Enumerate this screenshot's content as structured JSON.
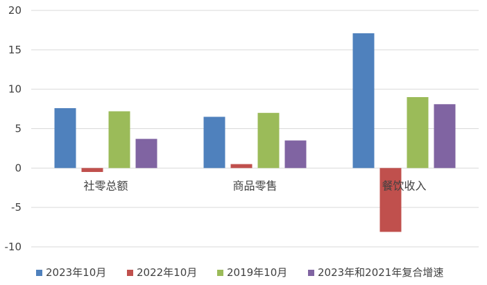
{
  "chart_data": {
    "type": "bar",
    "title": "",
    "xlabel": "",
    "ylabel": "",
    "categories": [
      "社零总额",
      "商品零售",
      "餐饮收入"
    ],
    "ylim": [
      -10,
      20
    ],
    "yticks": [
      -10,
      -5,
      0,
      5,
      10,
      15,
      20
    ],
    "grid": true,
    "legend": "bottom",
    "series": [
      {
        "name": "2023年10月",
        "color": "#4f81bd",
        "values": [
          7.6,
          6.5,
          17.1
        ]
      },
      {
        "name": "2022年10月",
        "color": "#c0504d",
        "values": [
          -0.5,
          0.5,
          -8.1
        ]
      },
      {
        "name": "2019年10月",
        "color": "#9bbb59",
        "values": [
          7.2,
          7.0,
          9.0
        ]
      },
      {
        "name": "2023年和2021年复合增速",
        "color": "#8064a2",
        "values": [
          3.7,
          3.5,
          8.1
        ]
      }
    ]
  }
}
